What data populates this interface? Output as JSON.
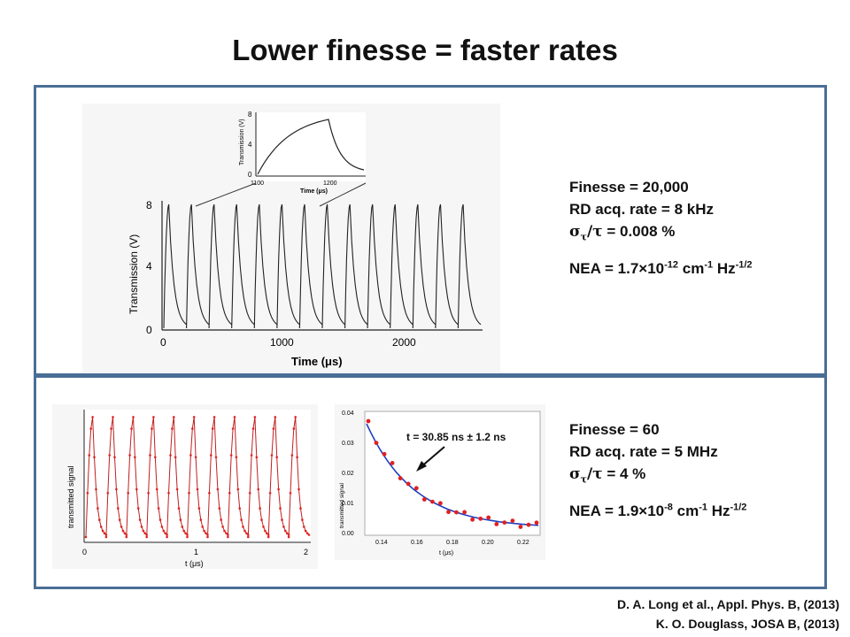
{
  "slide": {
    "title": "Lower finesse = faster rates"
  },
  "top_panel": {
    "stats": {
      "finesse": "Finesse = 20,000",
      "rate": "RD acq. rate = 8 kHz",
      "precision_value": "= 0.008 %",
      "nea_prefix": "NEA = 1.7×10",
      "nea_exp": "-12",
      "nea_unit1": " cm",
      "nea_unit1_exp": "-1",
      "nea_unit2": " Hz",
      "nea_unit2_exp": "-1/2"
    },
    "main_plot": {
      "ylabel": "Transmission (V)",
      "xlabel": "Time (μs)",
      "yticks": [
        "0",
        "4",
        "8"
      ],
      "xticks": [
        "0",
        "1000",
        "2000"
      ]
    },
    "inset_plot": {
      "ylabel": "Transmission (V)",
      "xlabel": "Time (μs)",
      "yticks": [
        "0",
        "4",
        "8"
      ],
      "xticks": [
        "1100",
        "1200"
      ]
    }
  },
  "bottom_panel": {
    "stats": {
      "finesse": "Finesse = 60",
      "rate": "RD acq. rate = 5 MHz",
      "precision_value": "= 4 %",
      "nea_prefix": "NEA = 1.9×10",
      "nea_exp": "-8",
      "nea_unit1": " cm",
      "nea_unit1_exp": "-1",
      "nea_unit2": " Hz",
      "nea_unit2_exp": "-1/2"
    },
    "left_plot": {
      "ylabel": "transmitted signal",
      "xlabel": "t (μs)",
      "xticks": [
        "0",
        "1",
        "2"
      ]
    },
    "right_plot": {
      "ylabel": "transmitted signal",
      "xlabel": "t (μs)",
      "yticks": [
        "0.00",
        "0.01",
        "0.02",
        "0.03",
        "0.04"
      ],
      "xticks": [
        "0.14",
        "0.16",
        "0.18",
        "0.20",
        "0.22"
      ],
      "annotation": "t = 30.85 ns ± 1.2 ns"
    }
  },
  "references": {
    "ref1": "D. A. Long et al., Appl. Phys. B, (2013)",
    "ref2": "K. O. Douglass, JOSA B, (2013)"
  },
  "colors": {
    "border": "#4a6e96",
    "fit_line": "#1f3fbf",
    "data_points": "#e02020"
  }
}
